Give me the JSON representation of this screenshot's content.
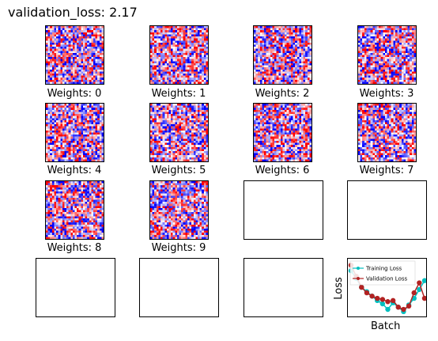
{
  "title": "validation_loss: 2.17",
  "weights_panels": [
    {
      "label": "Weights: 0",
      "seed": 11
    },
    {
      "label": "Weights: 1",
      "seed": 23
    },
    {
      "label": "Weights: 2",
      "seed": 37
    },
    {
      "label": "Weights: 3",
      "seed": 41
    },
    {
      "label": "Weights: 4",
      "seed": 53
    },
    {
      "label": "Weights: 5",
      "seed": 67
    },
    {
      "label": "Weights: 6",
      "seed": 79
    },
    {
      "label": "Weights: 7",
      "seed": 83
    },
    {
      "label": "Weights: 8",
      "seed": 97
    },
    {
      "label": "Weights: 9",
      "seed": 101
    }
  ],
  "colors": {
    "negative": "#0000ff",
    "positive": "#ff0000",
    "neutral": "#ffffff",
    "training": "#00bfbf",
    "validation": "#b22222"
  },
  "loss_plot": {
    "xlabel": "Batch",
    "ylabel": "Loss",
    "legend": [
      "Training Loss",
      "Validation Loss"
    ],
    "training_loss": [
      2.45,
      2.38,
      2.3,
      2.26,
      2.22,
      2.18,
      2.15,
      2.1,
      2.16,
      2.12,
      2.08,
      2.14,
      2.2,
      2.28,
      2.36
    ],
    "validation_loss": [
      2.5,
      2.4,
      2.3,
      2.25,
      2.22,
      2.2,
      2.19,
      2.17,
      2.18,
      2.12,
      2.1,
      2.13,
      2.25,
      2.34,
      2.2
    ]
  }
}
